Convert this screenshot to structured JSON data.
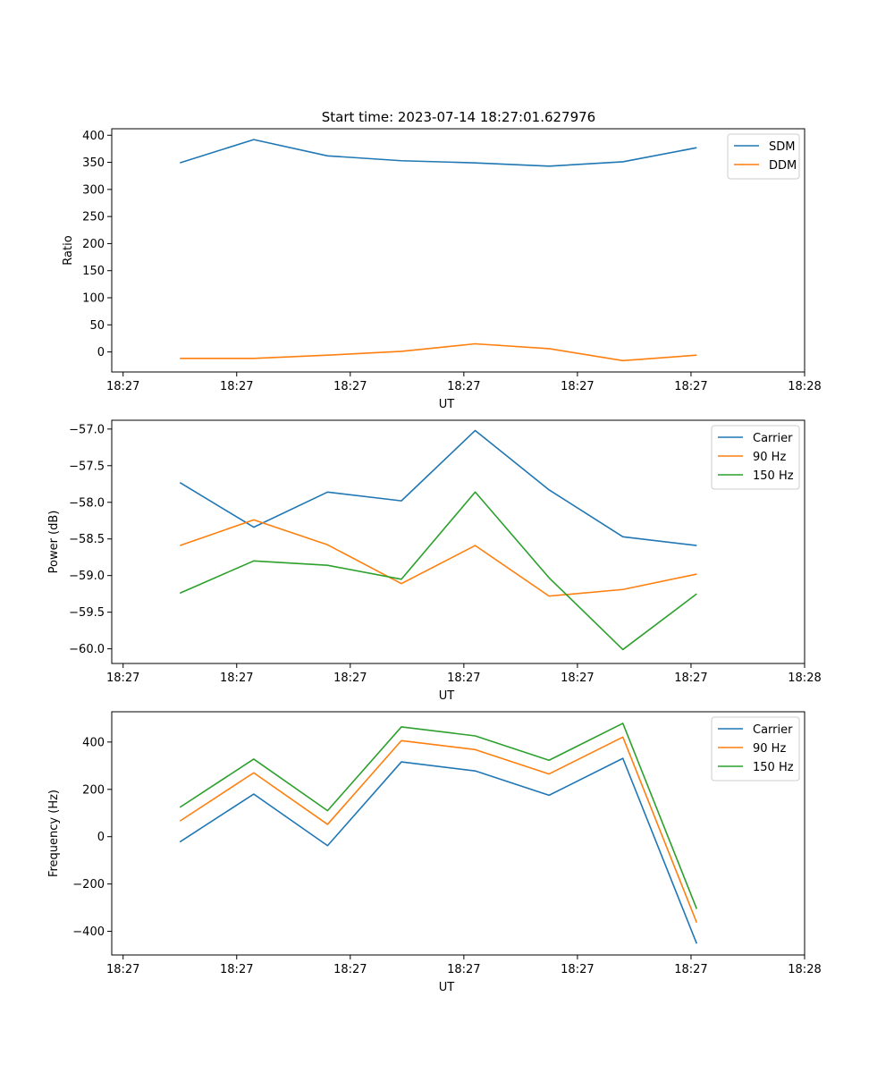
{
  "figure_title": "Start time: 2023-07-14 18:27:01.627976",
  "chart_data": [
    {
      "type": "line",
      "title": "Start time: 2023-07-14 18:27:01.627976",
      "xlabel": "UT",
      "ylabel": "Ratio",
      "x": [
        0.5,
        1.15,
        1.8,
        2.45,
        3.1,
        3.75,
        4.4,
        5.05
      ],
      "xlim": [
        -0.1,
        6.0
      ],
      "x_ticks": [
        0,
        1,
        2,
        3,
        4,
        5,
        6
      ],
      "x_tick_labels": [
        "18:27",
        "18:27",
        "18:27",
        "18:27",
        "18:27",
        "18:27",
        "18:28"
      ],
      "ylim": [
        -37,
        412
      ],
      "y_ticks": [
        0,
        50,
        100,
        150,
        200,
        250,
        300,
        350,
        400
      ],
      "y_tick_labels": [
        "0",
        "50",
        "100",
        "150",
        "200",
        "250",
        "300",
        "350",
        "400"
      ],
      "legend_position": "top-right",
      "series": [
        {
          "name": "SDM",
          "color": "#1f77b4",
          "values": [
            349,
            392,
            362,
            353,
            349,
            343,
            351,
            377
          ]
        },
        {
          "name": "DDM",
          "color": "#ff7f0e",
          "values": [
            -12,
            -12,
            -6,
            1,
            15,
            6,
            -16,
            -6
          ]
        }
      ]
    },
    {
      "type": "line",
      "title": "",
      "xlabel": "UT",
      "ylabel": "Power (dB)",
      "x": [
        0.5,
        1.15,
        1.8,
        2.45,
        3.1,
        3.75,
        4.4,
        5.05
      ],
      "xlim": [
        -0.1,
        6.0
      ],
      "x_ticks": [
        0,
        1,
        2,
        3,
        4,
        5,
        6
      ],
      "x_tick_labels": [
        "18:27",
        "18:27",
        "18:27",
        "18:27",
        "18:27",
        "18:27",
        "18:28"
      ],
      "ylim": [
        -60.2,
        -56.88
      ],
      "y_ticks": [
        -60.0,
        -59.5,
        -59.0,
        -58.5,
        -58.0,
        -57.5,
        -57.0
      ],
      "y_tick_labels": [
        "−60.0",
        "−59.5",
        "−59.0",
        "−58.5",
        "−58.0",
        "−57.5",
        "−57.0"
      ],
      "legend_position": "top-right",
      "series": [
        {
          "name": "Carrier",
          "color": "#1f77b4",
          "values": [
            -57.73,
            -58.34,
            -57.86,
            -57.98,
            -57.02,
            -57.83,
            -58.47,
            -58.59
          ]
        },
        {
          "name": "90 Hz",
          "color": "#ff7f0e",
          "values": [
            -58.59,
            -58.24,
            -58.58,
            -59.11,
            -58.59,
            -59.28,
            -59.19,
            -58.98
          ]
        },
        {
          "name": "150 Hz",
          "color": "#2ca02c",
          "values": [
            -59.24,
            -58.8,
            -58.86,
            -59.05,
            -57.86,
            -59.03,
            -60.01,
            -59.25
          ]
        }
      ]
    },
    {
      "type": "line",
      "title": "",
      "xlabel": "UT",
      "ylabel": "Frequency (Hz)",
      "x": [
        0.5,
        1.15,
        1.8,
        2.45,
        3.1,
        3.75,
        4.4,
        5.05
      ],
      "xlim": [
        -0.1,
        6.0
      ],
      "x_ticks": [
        0,
        1,
        2,
        3,
        4,
        5,
        6
      ],
      "x_tick_labels": [
        "18:27",
        "18:27",
        "18:27",
        "18:27",
        "18:27",
        "18:27",
        "18:28"
      ],
      "ylim": [
        -500,
        528
      ],
      "y_ticks": [
        -400,
        -200,
        0,
        200,
        400
      ],
      "y_tick_labels": [
        "−400",
        "−200",
        "0",
        "200",
        "400"
      ],
      "legend_position": "top-right",
      "series": [
        {
          "name": "Carrier",
          "color": "#1f77b4",
          "values": [
            -22,
            180,
            -38,
            316,
            278,
            175,
            331,
            -452
          ]
        },
        {
          "name": "90 Hz",
          "color": "#ff7f0e",
          "values": [
            66,
            270,
            52,
            406,
            368,
            265,
            421,
            -363
          ]
        },
        {
          "name": "150 Hz",
          "color": "#2ca02c",
          "values": [
            124,
            328,
            110,
            464,
            426,
            323,
            479,
            -305
          ]
        }
      ]
    }
  ]
}
